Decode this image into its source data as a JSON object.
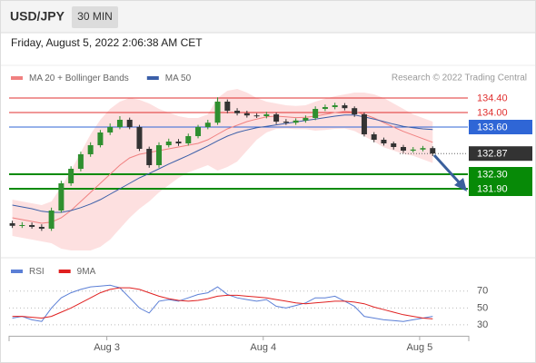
{
  "header": {
    "symbol": "USD/JPY",
    "timeframe": "30 MIN",
    "datetime": "Friday, August 5, 2022 2:06:38 AM CET"
  },
  "chart_data": [
    {
      "type": "candlestick",
      "credit": "Research © 2022 Trading Central",
      "up_color": "#2f8f2f",
      "down_color": "#333333",
      "xlim": [
        -15,
        55.4
      ],
      "ylim": [
        130.025,
        135.225
      ],
      "x": [
        -14.5,
        -13,
        -11.5,
        -10,
        -8.5,
        -7,
        -5.5,
        -4,
        -2.5,
        -1,
        0.5,
        2,
        3.5,
        5,
        6.5,
        8,
        9.5,
        11,
        12.5,
        14,
        15.5,
        17,
        18.5,
        20,
        21.5,
        23,
        24.5,
        26,
        27.5,
        29,
        30.5,
        32,
        33.5,
        35,
        36.5,
        38,
        39.5,
        41,
        42.5,
        44,
        45.5,
        47,
        48.5,
        50
      ],
      "open": [
        130.95,
        130.88,
        130.9,
        130.85,
        130.8,
        131.3,
        132.05,
        132.45,
        132.85,
        133.1,
        133.45,
        133.6,
        133.8,
        133.6,
        133.0,
        132.55,
        133.1,
        133.2,
        133.15,
        133.35,
        133.6,
        133.72,
        134.3,
        134.05,
        133.98,
        133.92,
        133.9,
        133.95,
        133.75,
        133.72,
        133.78,
        133.85,
        134.1,
        134.15,
        134.2,
        134.12,
        133.95,
        133.4,
        133.25,
        133.15,
        133.05,
        132.95,
        132.98,
        133.02
      ],
      "high": [
        131.02,
        130.98,
        130.97,
        130.92,
        131.38,
        132.12,
        132.52,
        132.92,
        133.18,
        133.52,
        133.7,
        133.9,
        133.86,
        133.66,
        133.06,
        133.18,
        133.28,
        133.27,
        133.42,
        133.66,
        133.8,
        134.42,
        134.36,
        134.12,
        134.05,
        133.98,
        134.02,
        134.0,
        133.82,
        133.84,
        133.92,
        134.17,
        134.22,
        134.27,
        134.26,
        134.17,
        134.0,
        133.46,
        133.31,
        133.2,
        133.11,
        133.05,
        133.08,
        133.07
      ],
      "low": [
        130.82,
        130.82,
        130.8,
        130.74,
        130.74,
        131.24,
        131.98,
        132.38,
        132.78,
        133.04,
        133.38,
        133.54,
        133.54,
        132.94,
        132.48,
        132.48,
        133.04,
        133.08,
        133.09,
        133.29,
        133.54,
        133.66,
        133.98,
        133.92,
        133.86,
        133.85,
        133.84,
        133.68,
        133.66,
        133.66,
        133.72,
        133.79,
        134.04,
        134.09,
        134.06,
        133.88,
        133.34,
        133.18,
        133.09,
        132.98,
        132.89,
        132.9,
        132.93,
        132.8
      ],
      "close": [
        130.88,
        130.9,
        130.85,
        130.8,
        131.3,
        132.05,
        132.45,
        132.85,
        133.1,
        133.45,
        133.6,
        133.8,
        133.6,
        133.0,
        132.55,
        133.1,
        133.2,
        133.15,
        133.35,
        133.6,
        133.72,
        134.3,
        134.05,
        133.98,
        133.92,
        133.9,
        133.95,
        133.75,
        133.72,
        133.78,
        133.85,
        134.1,
        134.15,
        134.2,
        134.12,
        133.95,
        133.4,
        133.25,
        133.15,
        133.05,
        132.95,
        132.98,
        133.02,
        132.87
      ],
      "series": [
        {
          "name": "MA 20 + Bollinger Bands",
          "color": "#f08080",
          "band_color": "#fde0e0",
          "values": [
            131.1,
            131.05,
            131.0,
            130.95,
            130.98,
            131.1,
            131.3,
            131.55,
            131.8,
            132.05,
            132.3,
            132.55,
            132.75,
            132.85,
            132.9,
            132.95,
            133.0,
            133.05,
            133.1,
            133.15,
            133.25,
            133.4,
            133.55,
            133.65,
            133.75,
            133.82,
            133.88,
            133.9,
            133.88,
            133.86,
            133.87,
            133.9,
            133.95,
            134.0,
            134.03,
            134.02,
            133.95,
            133.85,
            133.72,
            133.6,
            133.48,
            133.38,
            133.28,
            133.18
          ],
          "upper": [
            131.6,
            131.55,
            131.5,
            131.45,
            131.55,
            131.95,
            132.4,
            132.9,
            133.4,
            133.8,
            134.1,
            134.3,
            134.4,
            134.35,
            134.25,
            134.1,
            134.0,
            133.9,
            133.85,
            133.85,
            133.95,
            134.4,
            134.6,
            134.65,
            134.55,
            134.4,
            134.3,
            134.25,
            134.2,
            134.18,
            134.2,
            134.3,
            134.38,
            134.45,
            134.5,
            134.55,
            134.55,
            134.5,
            134.4,
            134.25,
            134.1,
            133.95,
            133.85,
            133.75
          ],
          "lower": [
            130.6,
            130.55,
            130.5,
            130.45,
            130.4,
            130.25,
            130.2,
            130.2,
            130.2,
            130.3,
            130.5,
            130.8,
            131.1,
            131.35,
            131.55,
            131.8,
            132.0,
            132.2,
            132.35,
            132.45,
            132.55,
            132.4,
            132.5,
            132.65,
            132.95,
            133.25,
            133.45,
            133.55,
            133.56,
            133.54,
            133.54,
            133.5,
            133.52,
            133.55,
            133.56,
            133.49,
            133.35,
            133.2,
            133.04,
            132.95,
            132.86,
            132.81,
            132.71,
            132.61
          ]
        },
        {
          "name": "MA 50",
          "color": "#3b5fa8",
          "values": [
            131.45,
            131.4,
            131.35,
            131.28,
            131.25,
            131.25,
            131.3,
            131.38,
            131.48,
            131.6,
            131.75,
            131.9,
            132.05,
            132.2,
            132.32,
            132.45,
            132.58,
            132.7,
            132.82,
            132.95,
            133.08,
            133.22,
            133.35,
            133.45,
            133.52,
            133.58,
            133.62,
            133.66,
            133.7,
            133.74,
            133.78,
            133.82,
            133.86,
            133.9,
            133.93,
            133.93,
            133.88,
            133.82,
            133.75,
            133.68,
            133.62,
            133.58,
            133.55,
            133.53
          ]
        }
      ],
      "levels": [
        {
          "value": 134.4,
          "label": "134.40",
          "color": "#e03030",
          "line": "thin",
          "tag": "text"
        },
        {
          "value": 134.0,
          "label": "134.00",
          "color": "#e03030",
          "line": "thin",
          "tag": "text"
        },
        {
          "value": 133.6,
          "label": "133.60",
          "color": "#2f66d6",
          "line": "thin",
          "tag": "box"
        },
        {
          "value": 132.87,
          "label": "132.87",
          "color": "#333333",
          "line": "dotted",
          "tag": "box"
        },
        {
          "value": 132.3,
          "label": "132.30",
          "color": "#078a07",
          "line": "thick",
          "tag": "box"
        },
        {
          "value": 131.9,
          "label": "131.90",
          "color": "#078a07",
          "line": "thick",
          "tag": "box"
        }
      ]
    },
    {
      "type": "line",
      "xlim": [
        -15,
        55.4
      ],
      "ylim": [
        17,
        87
      ],
      "xticks": [
        {
          "value": 0,
          "label": "Aug 3"
        },
        {
          "value": 24,
          "label": "Aug 4"
        },
        {
          "value": 48,
          "label": "Aug 5"
        }
      ],
      "yticks": [
        70,
        50,
        30
      ],
      "series": [
        {
          "name": "RSI",
          "color": "#5b7fd6",
          "values": [
            38,
            40,
            36,
            34,
            50,
            62,
            68,
            72,
            75,
            76,
            77,
            74,
            62,
            50,
            44,
            58,
            60,
            58,
            62,
            66,
            68,
            75,
            66,
            62,
            60,
            58,
            60,
            52,
            50,
            53,
            56,
            62,
            62,
            64,
            58,
            52,
            40,
            38,
            36,
            35,
            34,
            36,
            38,
            40
          ]
        },
        {
          "name": "9MA",
          "color": "#e02020",
          "values": [
            40,
            40,
            39,
            38,
            40,
            45,
            50,
            56,
            62,
            68,
            72,
            74,
            74,
            72,
            68,
            64,
            61,
            59,
            58,
            59,
            61,
            64,
            65,
            65,
            64,
            63,
            62,
            60,
            58,
            56,
            55,
            56,
            57,
            58,
            58,
            57,
            55,
            51,
            48,
            45,
            42,
            40,
            38,
            37
          ]
        }
      ]
    }
  ]
}
